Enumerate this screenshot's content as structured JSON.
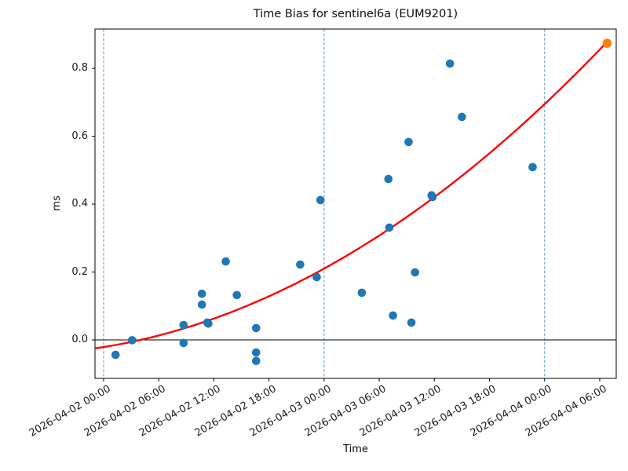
{
  "figure": {
    "title": "Time Bias for sentinel6a (EUM9201)",
    "xlabel": "Time",
    "ylabel": "ms"
  },
  "chart_data": {
    "type": "scatter",
    "title": "Time Bias for sentinel6a (EUM9201)",
    "xlabel": "Time",
    "ylabel": "ms",
    "grid": false,
    "legend": null,
    "time_origin": "2026-04-02 00:00",
    "x_tick_labels": [
      "2026-04-02 00:00",
      "2026-04-02 06:00",
      "2026-04-02 12:00",
      "2026-04-02 18:00",
      "2026-04-03 00:00",
      "2026-04-03 06:00",
      "2026-04-03 12:00",
      "2026-04-03 18:00",
      "2026-04-04 00:00",
      "2026-04-04 06:00"
    ],
    "x_ticks_hours": [
      0,
      6,
      12,
      18,
      24,
      30,
      36,
      42,
      48,
      54
    ],
    "y_tick_labels": [
      "0.0",
      "0.2",
      "0.4",
      "0.6",
      "0.8"
    ],
    "y_ticks": [
      0.0,
      0.2,
      0.4,
      0.6,
      0.8
    ],
    "xlim_hours": [
      -0.94,
      55.84
    ],
    "ylim": [
      -0.111,
      0.916
    ],
    "points": [
      {
        "time": "2026-04-02 01:18",
        "hours": 1.3,
        "ms": -0.044
      },
      {
        "time": "2026-04-02 03:06",
        "hours": 3.1,
        "ms": -0.001
      },
      {
        "time": "2026-04-02 08:42",
        "hours": 8.7,
        "ms": 0.044
      },
      {
        "time": "2026-04-02 08:42",
        "hours": 8.7,
        "ms": -0.009
      },
      {
        "time": "2026-04-02 10:42",
        "hours": 10.7,
        "ms": 0.136
      },
      {
        "time": "2026-04-02 10:42",
        "hours": 10.7,
        "ms": 0.104
      },
      {
        "time": "2026-04-02 11:18",
        "hours": 11.3,
        "ms": 0.051
      },
      {
        "time": "2026-04-02 11:24",
        "hours": 11.4,
        "ms": 0.048
      },
      {
        "time": "2026-04-02 13:18",
        "hours": 13.3,
        "ms": 0.231
      },
      {
        "time": "2026-04-02 14:30",
        "hours": 14.5,
        "ms": 0.132
      },
      {
        "time": "2026-04-02 16:36",
        "hours": 16.6,
        "ms": 0.035
      },
      {
        "time": "2026-04-02 16:36",
        "hours": 16.6,
        "ms": -0.037
      },
      {
        "time": "2026-04-02 16:36",
        "hours": 16.6,
        "ms": -0.062
      },
      {
        "time": "2026-04-02 21:24",
        "hours": 21.4,
        "ms": 0.222
      },
      {
        "time": "2026-04-02 23:12",
        "hours": 23.2,
        "ms": 0.185
      },
      {
        "time": "2026-04-02 23:36",
        "hours": 23.6,
        "ms": 0.412
      },
      {
        "time": "2026-04-03 04:06",
        "hours": 28.1,
        "ms": 0.139
      },
      {
        "time": "2026-04-03 07:00",
        "hours": 31.0,
        "ms": 0.474
      },
      {
        "time": "2026-04-03 07:06",
        "hours": 31.1,
        "ms": 0.331
      },
      {
        "time": "2026-04-03 07:30",
        "hours": 31.5,
        "ms": 0.072
      },
      {
        "time": "2026-04-03 09:12",
        "hours": 33.2,
        "ms": 0.583
      },
      {
        "time": "2026-04-03 09:30",
        "hours": 33.5,
        "ms": 0.051
      },
      {
        "time": "2026-04-03 09:54",
        "hours": 33.9,
        "ms": 0.199
      },
      {
        "time": "2026-04-03 11:42",
        "hours": 35.7,
        "ms": 0.426
      },
      {
        "time": "2026-04-03 11:48",
        "hours": 35.8,
        "ms": 0.421
      },
      {
        "time": "2026-04-03 13:42",
        "hours": 37.7,
        "ms": 0.814
      },
      {
        "time": "2026-04-03 15:00",
        "hours": 39.0,
        "ms": 0.657
      },
      {
        "time": "2026-04-03 22:42",
        "hours": 46.7,
        "ms": 0.509
      }
    ],
    "highlight_point": {
      "time": "2026-04-04 06:48",
      "hours": 54.8,
      "ms": 0.874
    },
    "fit_curve": {
      "type": "quadratic",
      "equation": "ms = 0.00022*t^2 + 0.00435*t - 0.021 (t = hours since 2026-04-02 00:00)",
      "coeffs": [
        0.00022,
        0.00435,
        -0.021
      ],
      "t_start": -0.8,
      "t_end": 54.8
    },
    "day_vlines_hours": [
      0,
      24,
      48
    ],
    "zero_line": 0.0,
    "colors": {
      "points": "#1f77b4",
      "highlight": "#ff7f0e",
      "fit": "#ff0000",
      "day_vline": "#74a9c9",
      "axes": "#000000",
      "background": "#ffffff"
    }
  }
}
